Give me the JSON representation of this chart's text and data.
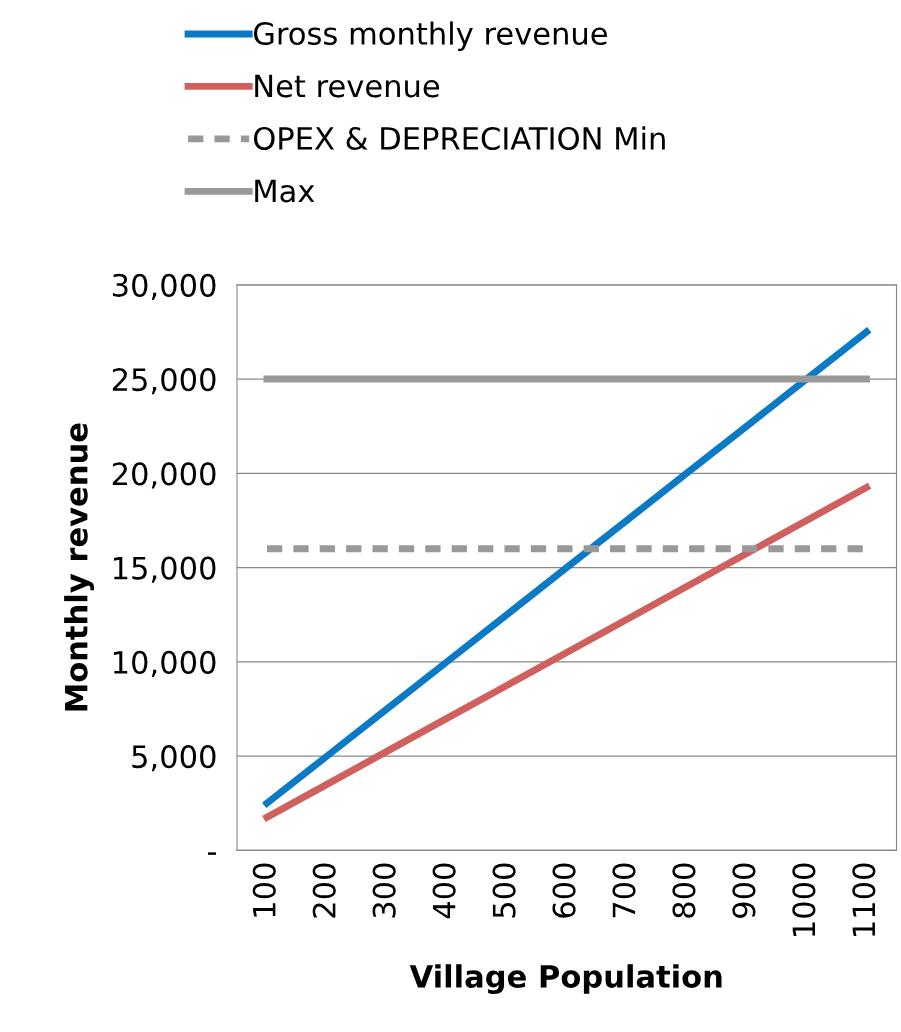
{
  "chart_data": {
    "type": "line",
    "xlabel": "Village Population",
    "ylabel": "Monthly revenue",
    "categories": [
      "100",
      "200",
      "300",
      "400",
      "500",
      "600",
      "700",
      "800",
      "900",
      "1000",
      "1100"
    ],
    "series": [
      {
        "name": "Gross monthly revenue",
        "color": "#0a7ac6",
        "values": [
          2500,
          5000,
          7500,
          10000,
          12500,
          15000,
          17500,
          20000,
          22500,
          25000,
          27500
        ]
      },
      {
        "name": "Net revenue",
        "color": "#d0605e",
        "values": [
          1750,
          3500,
          5250,
          7000,
          8750,
          10500,
          12250,
          14000,
          15750,
          17500,
          19250
        ]
      },
      {
        "name": "OPEX & DEPRECIATION Min",
        "color": "#999999",
        "line_style": "dashed",
        "values": [
          16000,
          16000,
          16000,
          16000,
          16000,
          16000,
          16000,
          16000,
          16000,
          16000,
          16000
        ]
      },
      {
        "name": "Max",
        "color": "#999999",
        "values": [
          25000,
          25000,
          25000,
          25000,
          25000,
          25000,
          25000,
          25000,
          25000,
          25000,
          25000
        ]
      }
    ],
    "ylim": [
      0,
      30000
    ],
    "yticks": [
      {
        "value": 0,
        "label": "-"
      },
      {
        "value": 5000,
        "label": "5,000"
      },
      {
        "value": 10000,
        "label": "10,000"
      },
      {
        "value": 15000,
        "label": "15,000"
      },
      {
        "value": 20000,
        "label": "20,000"
      },
      {
        "value": 25000,
        "label": "25,000"
      },
      {
        "value": 30000,
        "label": "30,000"
      }
    ],
    "grid": "y",
    "legend": "top",
    "marker": "none",
    "line_style": "solid"
  }
}
